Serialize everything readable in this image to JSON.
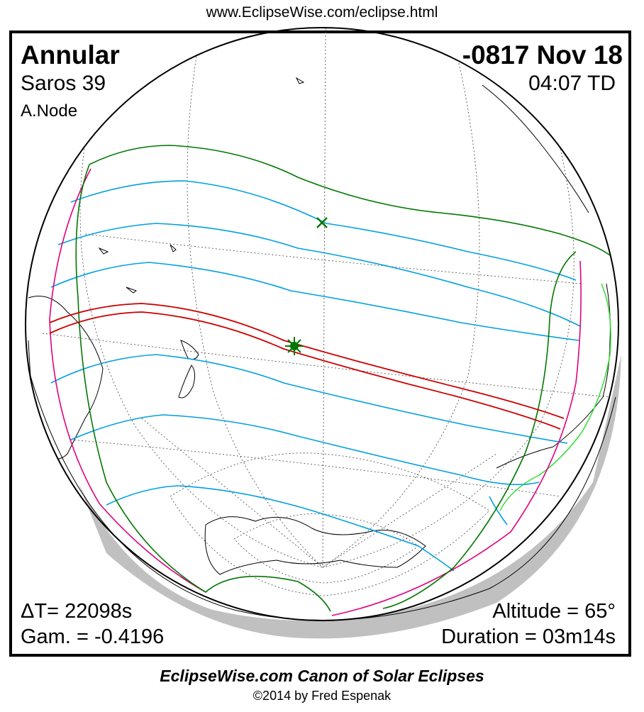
{
  "header": {
    "url": "www.EclipseWise.com/eclipse.html"
  },
  "eclipse": {
    "type": "Annular",
    "date": "-0817 Nov 18",
    "saros": "Saros  39",
    "time": "04:07 TD",
    "node": "A.Node",
    "delta_t": "ΔT=  22098s",
    "gamma": "Gam. = -0.4196",
    "altitude": "Altitude = 65°",
    "duration": "Duration = 03m14s"
  },
  "footer": {
    "canon": "EclipseWise.com Canon of Solar Eclipses",
    "copyright": "©2014 by Fred Espenak"
  },
  "colors": {
    "central_path": "#cc0000",
    "penumbral_limits": "#007700",
    "eclipse_magnitude_curves": "#00a0e0",
    "sunrise_sunset_curves": "#e0007f",
    "coastline_highlight": "#33dd33",
    "night_shade": "#c0c0c0"
  },
  "markers": {
    "greatest_eclipse": "star-marker",
    "subsolar_point": "x-marker"
  }
}
